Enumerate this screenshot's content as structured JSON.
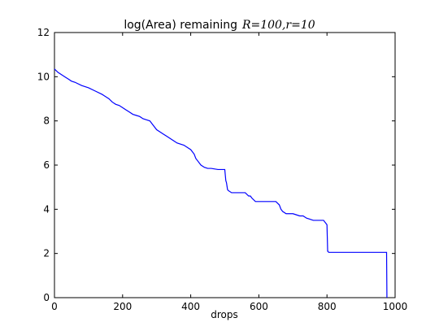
{
  "chart_data": {
    "type": "line",
    "title": "log(Area) remaining",
    "title_math": "R=100,r=10",
    "xlabel": "drops",
    "ylabel": "",
    "xlim": [
      0,
      1000
    ],
    "ylim": [
      0,
      12
    ],
    "xticks": [
      0,
      200,
      400,
      600,
      800,
      1000
    ],
    "yticks": [
      0,
      2,
      4,
      6,
      8,
      10,
      12
    ],
    "grid": false,
    "line_color": "#0000ff",
    "series": [
      {
        "x": [
          0,
          10,
          20,
          30,
          40,
          50,
          60,
          80,
          100,
          120,
          140,
          160,
          170,
          180,
          190,
          200,
          210,
          220,
          230,
          240,
          250,
          260,
          270,
          280,
          290,
          300,
          310,
          320,
          330,
          340,
          350,
          360,
          370,
          380,
          390,
          400,
          410,
          415,
          420,
          430,
          440,
          450,
          460,
          480,
          500,
          503,
          505,
          508,
          510,
          520,
          560,
          570,
          575,
          580,
          590,
          620,
          640,
          650,
          660,
          665,
          670,
          680,
          700,
          710,
          720,
          730,
          740,
          760,
          780,
          790,
          800,
          802,
          803,
          805,
          975,
          976
        ],
        "y": [
          10.35,
          10.2,
          10.1,
          10.0,
          9.9,
          9.8,
          9.75,
          9.6,
          9.5,
          9.35,
          9.2,
          9.0,
          8.85,
          8.75,
          8.7,
          8.6,
          8.5,
          8.4,
          8.3,
          8.25,
          8.2,
          8.1,
          8.05,
          8.0,
          7.8,
          7.6,
          7.5,
          7.4,
          7.3,
          7.2,
          7.1,
          7.0,
          6.95,
          6.9,
          6.8,
          6.7,
          6.5,
          6.3,
          6.2,
          6.0,
          5.9,
          5.85,
          5.85,
          5.8,
          5.8,
          5.3,
          5.2,
          4.9,
          4.85,
          4.75,
          4.75,
          4.6,
          4.6,
          4.5,
          4.35,
          4.35,
          4.35,
          4.35,
          4.2,
          4.0,
          3.9,
          3.8,
          3.8,
          3.75,
          3.7,
          3.7,
          3.6,
          3.5,
          3.5,
          3.5,
          3.3,
          2.1,
          2.1,
          2.05,
          2.05,
          0
        ]
      }
    ]
  }
}
